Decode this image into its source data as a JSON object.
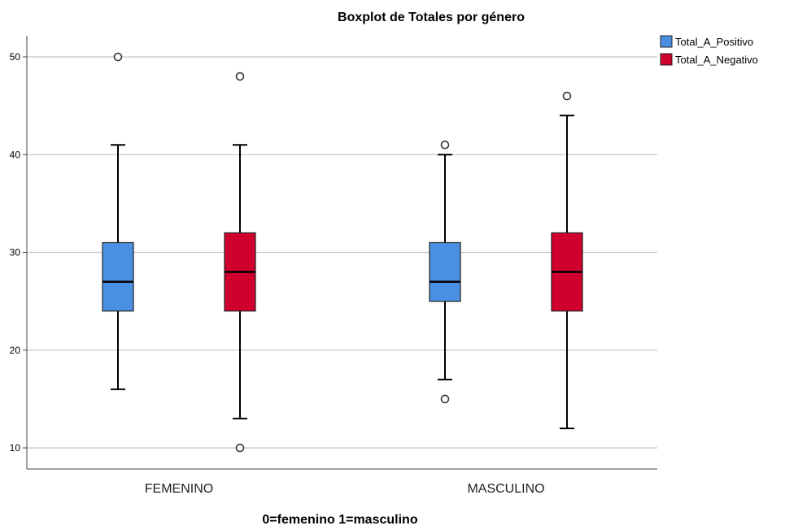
{
  "chart_data": {
    "type": "boxplot",
    "title": "Boxplot de Totales por género",
    "xlabel": "0=femenino 1=masculino",
    "ylabel": "",
    "ylim": [
      8,
      52
    ],
    "yticks": [
      10,
      20,
      30,
      40,
      50
    ],
    "grid": "horizontal",
    "legend_position": "top-right",
    "categories": [
      "FEMENINO",
      "MASCULINO"
    ],
    "series": [
      {
        "name": "Total_A_Positivo",
        "color": "#4a90e2",
        "boxes": [
          {
            "min": 16,
            "q1": 24,
            "median": 27,
            "q3": 31,
            "max": 41,
            "outliers": [
              50
            ]
          },
          {
            "min": 17,
            "q1": 25,
            "median": 27,
            "q3": 31,
            "max": 40,
            "outliers": [
              41,
              15
            ]
          }
        ]
      },
      {
        "name": "Total_A_Negativo",
        "color": "#d0002e",
        "boxes": [
          {
            "min": 13,
            "q1": 24,
            "median": 28,
            "q3": 32,
            "max": 41,
            "outliers": [
              48,
              10
            ]
          },
          {
            "min": 12,
            "q1": 24,
            "median": 28,
            "q3": 32,
            "max": 44,
            "outliers": [
              46
            ]
          }
        ]
      }
    ]
  }
}
